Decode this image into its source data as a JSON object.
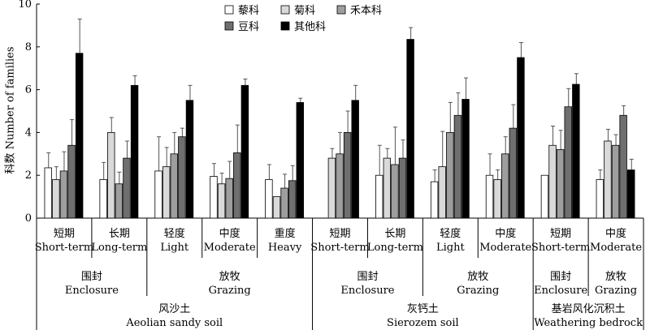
{
  "chart_data": {
    "type": "bar",
    "ylabel": "科数 Number of families",
    "ylim": [
      0,
      10
    ],
    "yticks": [
      0,
      2,
      4,
      6,
      8,
      10
    ],
    "legend_position": "top",
    "series": [
      {
        "name": "藜科",
        "color": "#ffffff"
      },
      {
        "name": "菊科",
        "color": "#d9d9d9"
      },
      {
        "name": "禾本科",
        "color": "#9e9e9e"
      },
      {
        "name": "豆科",
        "color": "#6f6f6f"
      },
      {
        "name": "其他科",
        "color": "#000000"
      }
    ],
    "groups": [
      {
        "zh": "短期",
        "en": "Short-term",
        "values": [
          2.35,
          1.8,
          2.2,
          3.4,
          7.7
        ],
        "errors": [
          0.7,
          0.6,
          0.9,
          1.2,
          1.6
        ]
      },
      {
        "zh": "长期",
        "en": "Long-term",
        "values": [
          1.8,
          4.0,
          1.6,
          2.8,
          6.2
        ],
        "errors": [
          0.8,
          0.7,
          0.55,
          0.8,
          0.45
        ]
      },
      {
        "zh": "轻度",
        "en": "Light",
        "values": [
          2.2,
          2.4,
          3.0,
          3.8,
          5.5
        ],
        "errors": [
          1.6,
          0.9,
          1.0,
          0.4,
          0.7
        ]
      },
      {
        "zh": "中度",
        "en": "Moderate",
        "values": [
          1.95,
          1.6,
          1.85,
          3.05,
          6.2
        ],
        "errors": [
          0.6,
          0.5,
          0.8,
          1.3,
          0.3
        ]
      },
      {
        "zh": "重度",
        "en": "Heavy",
        "values": [
          1.8,
          1.0,
          1.4,
          1.75,
          5.4
        ],
        "errors": [
          0.7,
          0.0,
          0.65,
          0.7,
          0.2
        ]
      },
      {
        "zh": "短期",
        "en": "Short-term",
        "values": [
          null,
          2.8,
          3.0,
          4.0,
          5.5
        ],
        "errors": [
          0,
          0.45,
          1.0,
          1.0,
          0.7
        ]
      },
      {
        "zh": "长期",
        "en": "Long-term",
        "values": [
          2.0,
          2.8,
          2.5,
          2.8,
          8.35
        ],
        "errors": [
          1.4,
          0.45,
          1.75,
          0.85,
          0.55
        ]
      },
      {
        "zh": "轻度",
        "en": "Light",
        "values": [
          1.7,
          2.4,
          4.0,
          4.8,
          5.55
        ],
        "errors": [
          0.55,
          1.65,
          1.4,
          1.05,
          1.0
        ]
      },
      {
        "zh": "中度",
        "en": "Moderate",
        "values": [
          2.0,
          1.8,
          3.0,
          4.2,
          7.5
        ],
        "errors": [
          1.0,
          0.45,
          0.8,
          1.1,
          0.7
        ]
      },
      {
        "zh": "短期",
        "en": "Short-term",
        "values": [
          2.0,
          3.4,
          3.2,
          5.2,
          6.25
        ],
        "errors": [
          0,
          0.9,
          0.9,
          0.85,
          0.5
        ]
      },
      {
        "zh": "中度",
        "en": "Moderate",
        "values": [
          1.8,
          3.6,
          3.4,
          4.8,
          2.25
        ],
        "errors": [
          0.45,
          0.55,
          0.5,
          0.45,
          0.5
        ]
      }
    ],
    "management": [
      {
        "zh": "围封",
        "en": "Enclosure",
        "groups": [
          0,
          1
        ]
      },
      {
        "zh": "放牧",
        "en": "Grazing",
        "groups": [
          2,
          3,
          4
        ]
      },
      {
        "zh": "围封",
        "en": "Enclosure",
        "groups": [
          5,
          6
        ]
      },
      {
        "zh": "放牧",
        "en": "Grazing",
        "groups": [
          7,
          8
        ]
      },
      {
        "zh": "围封",
        "en": "Enclosure",
        "groups": [
          9
        ]
      },
      {
        "zh": "放牧",
        "en": "Grazing",
        "groups": [
          10
        ]
      }
    ],
    "soils": [
      {
        "zh": "风沙土",
        "en": "Aeolian sandy soil",
        "groups": [
          0,
          1,
          2,
          3,
          4
        ]
      },
      {
        "zh": "灰钙土",
        "en": "Sierozem soil",
        "groups": [
          5,
          6,
          7,
          8
        ]
      },
      {
        "zh": "基岩风化沉积土",
        "en": "Weathering bedrock",
        "groups": [
          9,
          10
        ]
      }
    ]
  }
}
